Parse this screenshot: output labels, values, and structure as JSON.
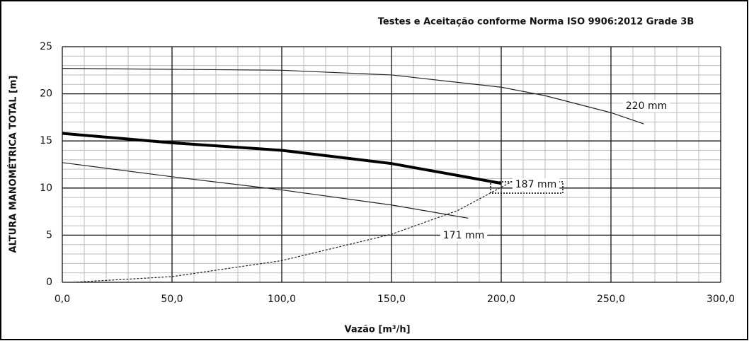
{
  "chart_data": {
    "type": "line",
    "title": "Testes e Aceitação conforme Norma ISO 9906:2012 Grade 3B",
    "x_label": "Vazão [m³/h]",
    "y_label": "ALTURA MANOMÉTRICA TOTAL [m]",
    "xlim": [
      0,
      300
    ],
    "ylim": [
      0,
      25
    ],
    "xticks": [
      {
        "value": 0,
        "label": "0,0"
      },
      {
        "value": 50,
        "label": "50,0"
      },
      {
        "value": 100,
        "label": "100,0"
      },
      {
        "value": 150,
        "label": "150,0"
      },
      {
        "value": 200,
        "label": "200,0"
      },
      {
        "value": 250,
        "label": "250,0"
      },
      {
        "value": 300,
        "label": "300,0"
      }
    ],
    "yticks": [
      0,
      5,
      10,
      15,
      20,
      25
    ],
    "grid": true,
    "series": [
      {
        "name": "220 mm",
        "color": "#222222",
        "line_width": 1.2,
        "x": [
          0,
          50,
          100,
          150,
          200,
          220,
          250,
          265
        ],
        "values": [
          22.7,
          22.6,
          22.5,
          22.0,
          20.7,
          19.8,
          18.0,
          16.8
        ]
      },
      {
        "name": "187 mm",
        "color": "#000000",
        "line_width": 4,
        "x": [
          0,
          50,
          100,
          150,
          200
        ],
        "values": [
          15.8,
          14.8,
          14.0,
          12.6,
          10.5
        ]
      },
      {
        "name": "171 mm",
        "color": "#222222",
        "line_width": 1.2,
        "x": [
          0,
          50,
          100,
          150,
          185
        ],
        "values": [
          12.7,
          11.2,
          9.8,
          8.2,
          6.8
        ]
      },
      {
        "color": "#222222",
        "line_width": 1.2,
        "dashed": true,
        "x": [
          5,
          50,
          100,
          150,
          180,
          205
        ],
        "values": [
          0,
          0.6,
          2.3,
          5.1,
          7.6,
          10.7
        ]
      }
    ]
  }
}
